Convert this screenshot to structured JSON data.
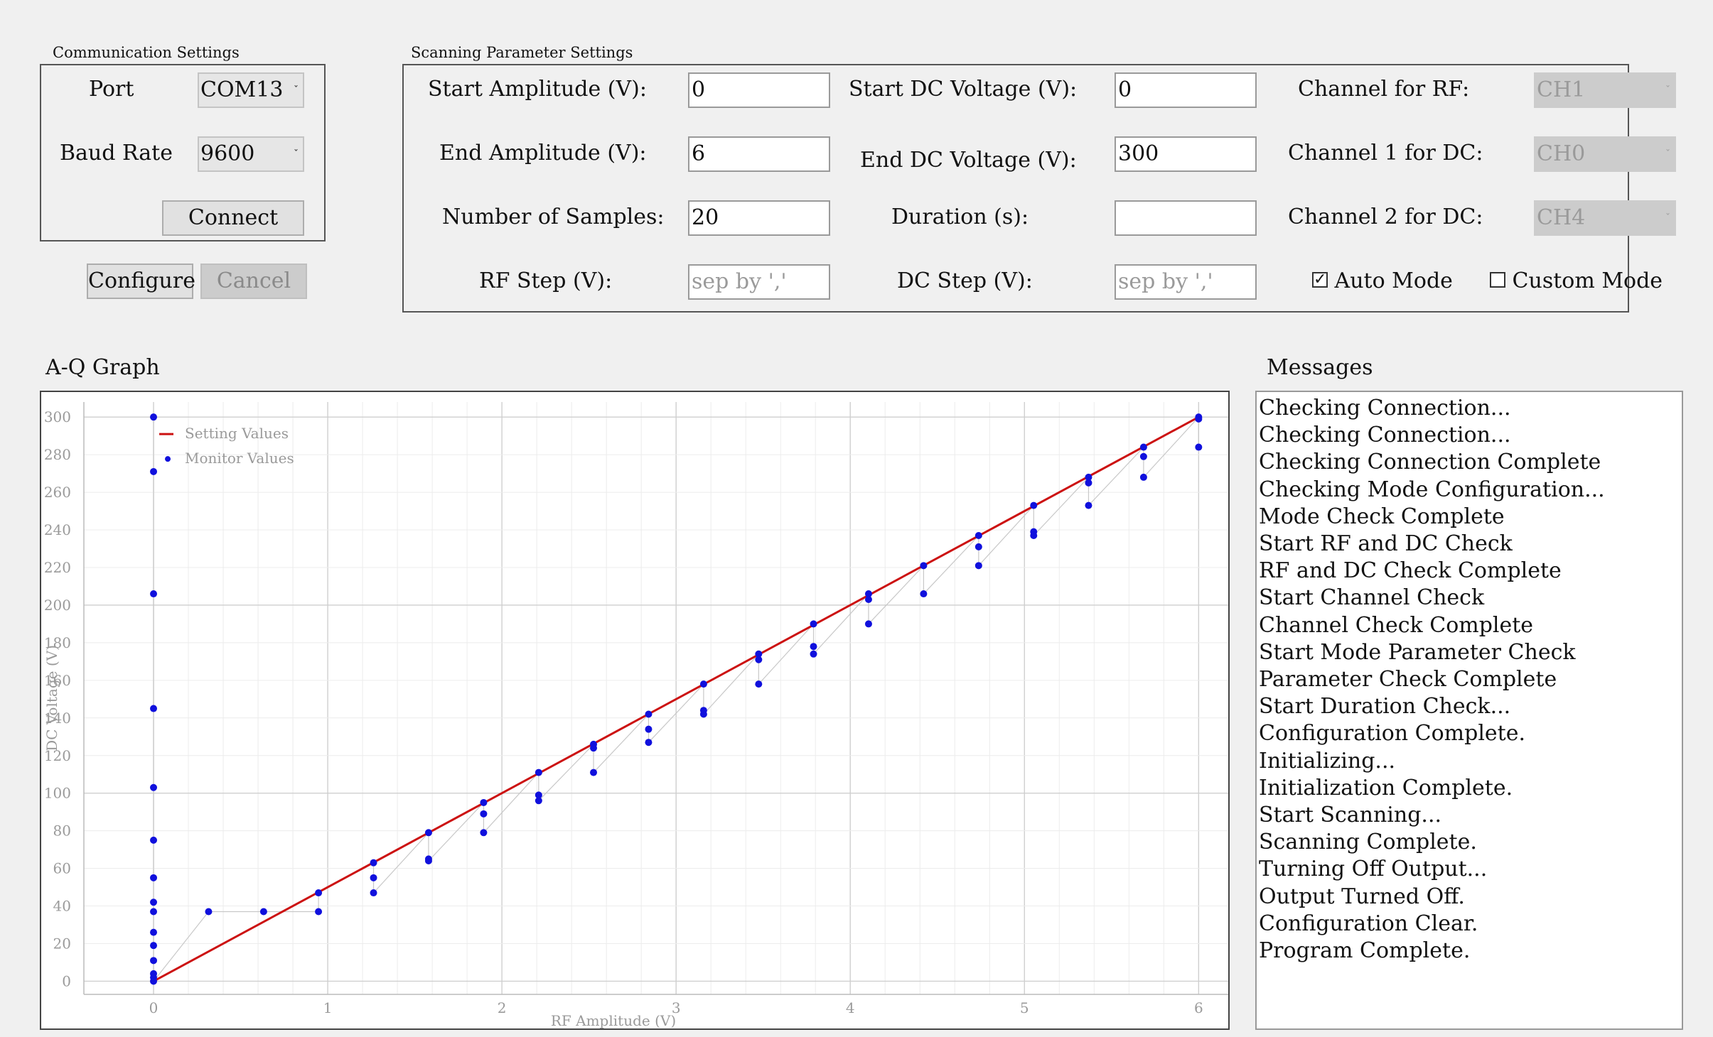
{
  "communication": {
    "title": "Communication Settings",
    "port_label": "Port",
    "port_value": "COM13",
    "baud_label": "Baud Rate",
    "baud_value": "9600",
    "connect_label": "Connect"
  },
  "actions": {
    "configure_label": "Configure",
    "cancel_label": "Cancel"
  },
  "scanning": {
    "title": "Scanning Parameter Settings",
    "start_amplitude_label": "Start Amplitude (V):",
    "start_amplitude_value": "0",
    "end_amplitude_label": "End Amplitude (V):",
    "end_amplitude_value": "6",
    "samples_label": "Number of Samples:",
    "samples_value": "20",
    "rf_step_label": "RF Step (V):",
    "rf_step_placeholder": "sep by ','",
    "start_dc_label": "Start DC Voltage (V):",
    "start_dc_value": "0",
    "end_dc_label": "End DC Voltage (V):",
    "end_dc_value": "300",
    "duration_label": "Duration (s):",
    "duration_value": "",
    "dc_step_label": "DC Step (V):",
    "dc_step_placeholder": "sep by ','",
    "channel_rf_label": "Channel for RF:",
    "channel_rf_value": "CH1",
    "channel_dc1_label": "Channel 1 for DC:",
    "channel_dc1_value": "CH0",
    "channel_dc2_label": "Channel 2 for DC:",
    "channel_dc2_value": "CH4",
    "auto_mode_label": "Auto Mode",
    "auto_mode_checked": true,
    "custom_mode_label": "Custom Mode",
    "custom_mode_checked": false
  },
  "graph": {
    "title": "A-Q Graph"
  },
  "messages": {
    "title": "Messages",
    "lines": [
      "Checking Connection...",
      "Checking Connection...",
      "Checking Connection Complete",
      "Checking Mode Configuration...",
      "Mode Check Complete",
      "Start RF and DC Check",
      "RF and DC Check Complete",
      "Start Channel Check",
      "Channel Check Complete",
      "Start Mode Parameter Check",
      "Parameter Check Complete",
      "Start Duration Check...",
      "Configuration Complete.",
      "Initializing...",
      "Initialization Complete.",
      "Start Scanning...",
      "Scanning Complete.",
      "Turning Off Output...",
      "Output Turned Off.",
      "Configuration Clear.",
      "Program Complete."
    ]
  },
  "chart_data": {
    "type": "scatter",
    "xlabel": "RF Amplitude (V)",
    "ylabel": "DC Voltage (V)",
    "xlim": [
      -0.4,
      6.17
    ],
    "ylim": [
      -7,
      308
    ],
    "xticks": [
      "0",
      "1",
      "2",
      "3",
      "4",
      "5",
      "6"
    ],
    "yticks": [
      "0",
      "20",
      "40",
      "60",
      "80",
      "100",
      "120",
      "140",
      "160",
      "180",
      "200",
      "220",
      "240",
      "260",
      "280",
      "300"
    ],
    "grid": true,
    "legend_position": "top-left",
    "setting_color": "#cc1111",
    "monitor_color": "#1010dd",
    "series": [
      {
        "name": "Setting Values",
        "kind": "line",
        "x": [
          0,
          6
        ],
        "y": [
          0,
          300
        ]
      },
      {
        "name": "Monitor Values",
        "kind": "scatter",
        "x": [
          0,
          0,
          0,
          0,
          0,
          0,
          0,
          0,
          0,
          0,
          0,
          0,
          0,
          0,
          0,
          0.316,
          0.632,
          0.947,
          0.947,
          1.263,
          1.263,
          1.263,
          1.579,
          1.579,
          1.579,
          1.895,
          1.895,
          1.895,
          2.211,
          2.211,
          2.211,
          2.526,
          2.526,
          2.526,
          2.842,
          2.842,
          2.842,
          3.158,
          3.158,
          3.158,
          3.474,
          3.474,
          3.474,
          3.789,
          3.789,
          3.789,
          4.105,
          4.105,
          4.105,
          4.421,
          4.421,
          4.737,
          4.737,
          4.737,
          5.053,
          5.053,
          5.053,
          5.368,
          5.368,
          5.368,
          5.684,
          5.684,
          5.684,
          6,
          6,
          6
        ],
        "y": [
          300,
          271,
          206,
          145,
          103,
          75,
          55,
          42,
          37,
          26,
          19,
          11,
          4,
          2,
          0,
          37,
          37,
          37,
          47,
          63,
          55,
          47,
          79,
          65,
          64,
          95,
          89,
          79,
          111,
          99,
          96,
          126,
          124,
          111,
          142,
          134,
          127,
          158,
          144,
          142,
          174,
          171,
          158,
          190,
          178,
          174,
          206,
          203,
          190,
          221,
          206,
          237,
          231,
          221,
          253,
          239,
          237,
          268,
          265,
          253,
          284,
          279,
          268,
          300,
          299,
          284
        ]
      }
    ]
  }
}
